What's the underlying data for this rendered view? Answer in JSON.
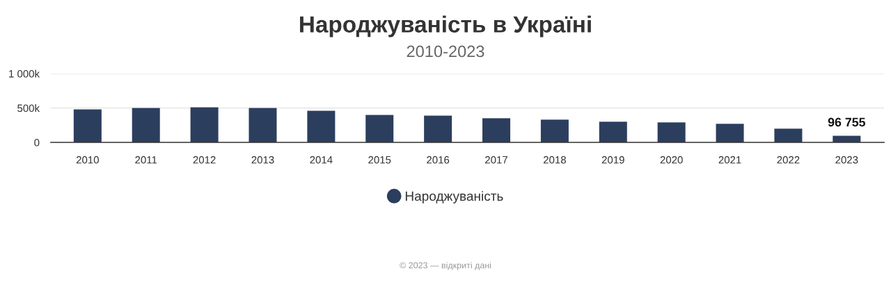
{
  "chart_data": {
    "type": "bar",
    "title": "Народжуваність в Україні",
    "subtitle": "2010-2023",
    "categories": [
      "2010",
      "2011",
      "2012",
      "2013",
      "2014",
      "2015",
      "2016",
      "2017",
      "2018",
      "2019",
      "2020",
      "2021",
      "2022",
      "2023"
    ],
    "series": [
      {
        "name": "Народжуваність",
        "color": "#2c3e5e",
        "values": [
          480000,
          500000,
          510000,
          500000,
          460000,
          400000,
          390000,
          350000,
          330000,
          300000,
          290000,
          270000,
          200000,
          96755
        ],
        "value_labels": [
          null,
          null,
          null,
          null,
          null,
          null,
          null,
          null,
          null,
          null,
          null,
          null,
          null,
          "96 755"
        ]
      }
    ],
    "ylim": [
      0,
      1000000
    ],
    "yticks": [
      0,
      {
        "value": 500000,
        "label": "500k"
      },
      {
        "value": 1000000,
        "label": "1 000k"
      }
    ],
    "grid": "y",
    "legend": "bottom",
    "marker": "circle",
    "annotations": [
      "© 2023 — відкриті дані"
    ]
  }
}
